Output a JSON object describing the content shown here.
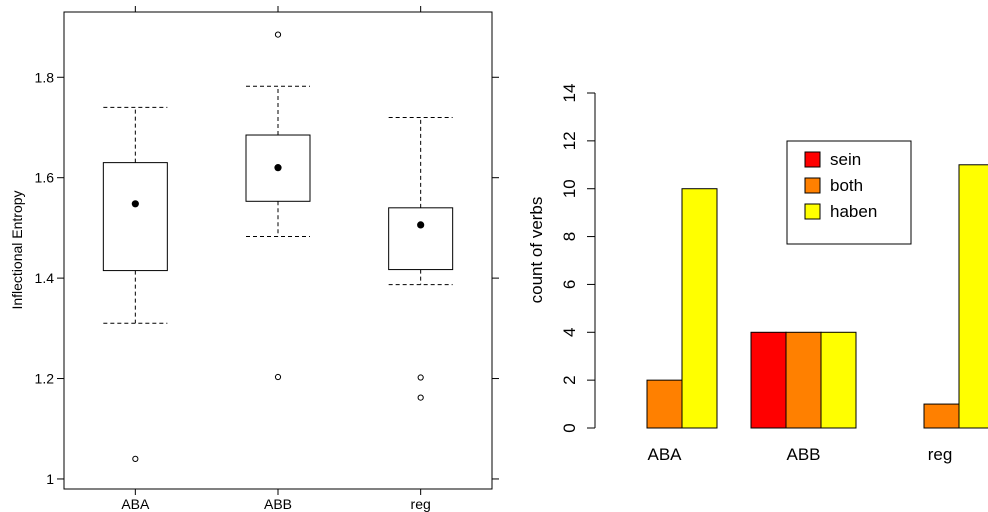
{
  "chart_data": [
    {
      "type": "box",
      "ylabel": "Inflectional Entropy",
      "categories": [
        "ABA",
        "ABB",
        "reg"
      ],
      "ylim": [
        0.98,
        1.93
      ],
      "yticks": [
        "1",
        "1.2",
        "1.4",
        "1.6",
        "1.8"
      ],
      "boxes": [
        {
          "category": "ABA",
          "whisker_low": 1.31,
          "q1": 1.415,
          "q3": 1.63,
          "whisker_high": 1.74,
          "mean": 1.548,
          "outliers": [
            1.04
          ]
        },
        {
          "category": "ABB",
          "whisker_low": 1.483,
          "q1": 1.553,
          "q3": 1.685,
          "whisker_high": 1.782,
          "mean": 1.62,
          "outliers": [
            1.885,
            1.203
          ]
        },
        {
          "category": "reg",
          "whisker_low": 1.387,
          "q1": 1.417,
          "q3": 1.54,
          "whisker_high": 1.72,
          "mean": 1.506,
          "outliers": [
            1.202,
            1.162
          ]
        }
      ]
    },
    {
      "type": "bar",
      "ylabel": "count of verbs",
      "categories": [
        "ABA",
        "ABB",
        "reg"
      ],
      "ylim": [
        0,
        14
      ],
      "yticks": [
        "0",
        "2",
        "4",
        "6",
        "8",
        "10",
        "12",
        "14"
      ],
      "series": [
        {
          "name": "sein",
          "color": "#ff0000",
          "values": [
            0,
            4,
            0
          ]
        },
        {
          "name": "both",
          "color": "#ff8000",
          "values": [
            2,
            4,
            1
          ]
        },
        {
          "name": "haben",
          "color": "#ffff00",
          "values": [
            10,
            4,
            11
          ]
        }
      ],
      "legend": "top-right"
    }
  ]
}
